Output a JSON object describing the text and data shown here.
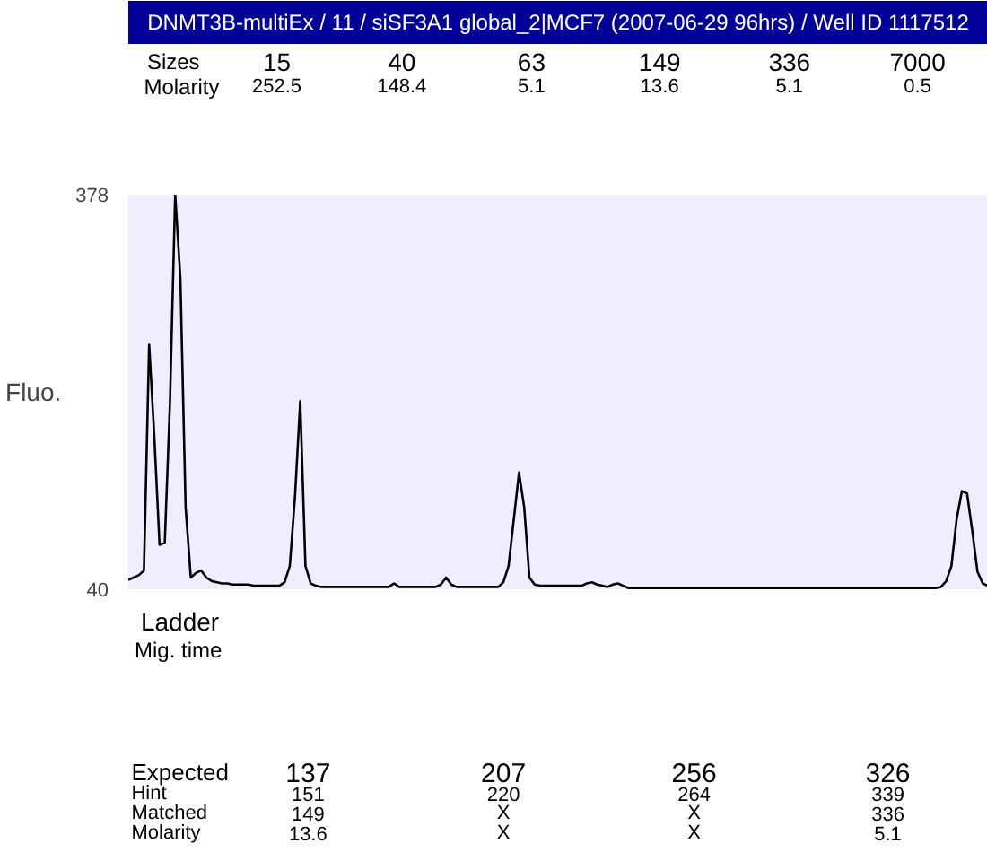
{
  "chart_data": {
    "type": "line",
    "title": "DNMT3B-multiEx / 11 / siSF3A1 global_2|MCF7 (2007-06-29 96hrs) / Well ID 1117512",
    "ylabel": "Fluo.",
    "categories": [
      null,
      null,
      null,
      null,
      null,
      null,
      null,
      null,
      null,
      null,
      null,
      null,
      null,
      null,
      null,
      null,
      null,
      null,
      null,
      null,
      null,
      null,
      null,
      null,
      null,
      null,
      null,
      null,
      null,
      null,
      null,
      null,
      null,
      null,
      null,
      null,
      null,
      null,
      null,
      null,
      null,
      null,
      null,
      null,
      null,
      null,
      null,
      null,
      null,
      null,
      null,
      null,
      null,
      null,
      null,
      null,
      null,
      null,
      null,
      null,
      null,
      null,
      null,
      null,
      null,
      null,
      null,
      null,
      null,
      null,
      null,
      null,
      null,
      null,
      null,
      null,
      null,
      null,
      null,
      null,
      null,
      null,
      null,
      null,
      null,
      null,
      null,
      null,
      null,
      null,
      null,
      null,
      null,
      null,
      null,
      null,
      null,
      null,
      null,
      null,
      null,
      null,
      null,
      null,
      null,
      null,
      null,
      null,
      null,
      null,
      null,
      null,
      null,
      null,
      null,
      null,
      null,
      null,
      null,
      null,
      null,
      null,
      null,
      null,
      null,
      null,
      null,
      null,
      null,
      null,
      null,
      null,
      null,
      null,
      null,
      null,
      null,
      null,
      null,
      null,
      null,
      null,
      null,
      null,
      null,
      null,
      null,
      null,
      null,
      null,
      null,
      null,
      null,
      null,
      null,
      null,
      null,
      null,
      null,
      null,
      null,
      null,
      null,
      null,
      null,
      null
    ],
    "series": [
      {
        "color": "#000000",
        "values": [
          48,
          50,
          52,
          56,
          250,
          170,
          78,
          80,
          200,
          378,
          306,
          110,
          50,
          54,
          56,
          50,
          47,
          46,
          45,
          45,
          44,
          44,
          44,
          44,
          43,
          43,
          43,
          43,
          43,
          43,
          46,
          60,
          120,
          201,
          60,
          45,
          43,
          42,
          42,
          42,
          42,
          42,
          42,
          42,
          42,
          42,
          42,
          42,
          42,
          42,
          42,
          45,
          42,
          42,
          42,
          42,
          42,
          42,
          42,
          42,
          44,
          50,
          44,
          42,
          42,
          42,
          42,
          42,
          42,
          42,
          42,
          42,
          46,
          60,
          100,
          140,
          110,
          50,
          44,
          43,
          43,
          43,
          43,
          43,
          43,
          43,
          43,
          43,
          45,
          46,
          44,
          43,
          42,
          44,
          45,
          43,
          41,
          41,
          41,
          41,
          41,
          41,
          41,
          41,
          41,
          41,
          41,
          41,
          41,
          41,
          41,
          41,
          41,
          41,
          41,
          41,
          41,
          41,
          41,
          41,
          41,
          41,
          41,
          41,
          41,
          41,
          41,
          41,
          41,
          41,
          41,
          41,
          41,
          41,
          41,
          41,
          41,
          41,
          41,
          41,
          41,
          41,
          41,
          41,
          41,
          41,
          41,
          41,
          41,
          41,
          41,
          41,
          41,
          41,
          41,
          41,
          42,
          47,
          60,
          100,
          124,
          122,
          90,
          55,
          45,
          43
        ]
      }
    ],
    "ylim": [
      40,
      378
    ],
    "yticks": [
      40,
      378
    ],
    "tick_labels": "y",
    "grid": false,
    "marker": "none",
    "line_style": "solid",
    "annotations": [
      "Sizes",
      "Molarity",
      "15",
      "252.5",
      "40",
      "148.4",
      "63",
      "5.1",
      "149",
      "13.6",
      "336",
      "5.1",
      "7000",
      "0.5",
      "Ladder",
      "Mig. time",
      "Expected",
      "Hint",
      "Matched",
      "Molarity",
      "137",
      "151",
      "149",
      "13.6",
      "207",
      "220",
      "X",
      "X",
      "256",
      "264",
      "X",
      "X",
      "326",
      "339",
      "336",
      "5.1"
    ]
  }
}
